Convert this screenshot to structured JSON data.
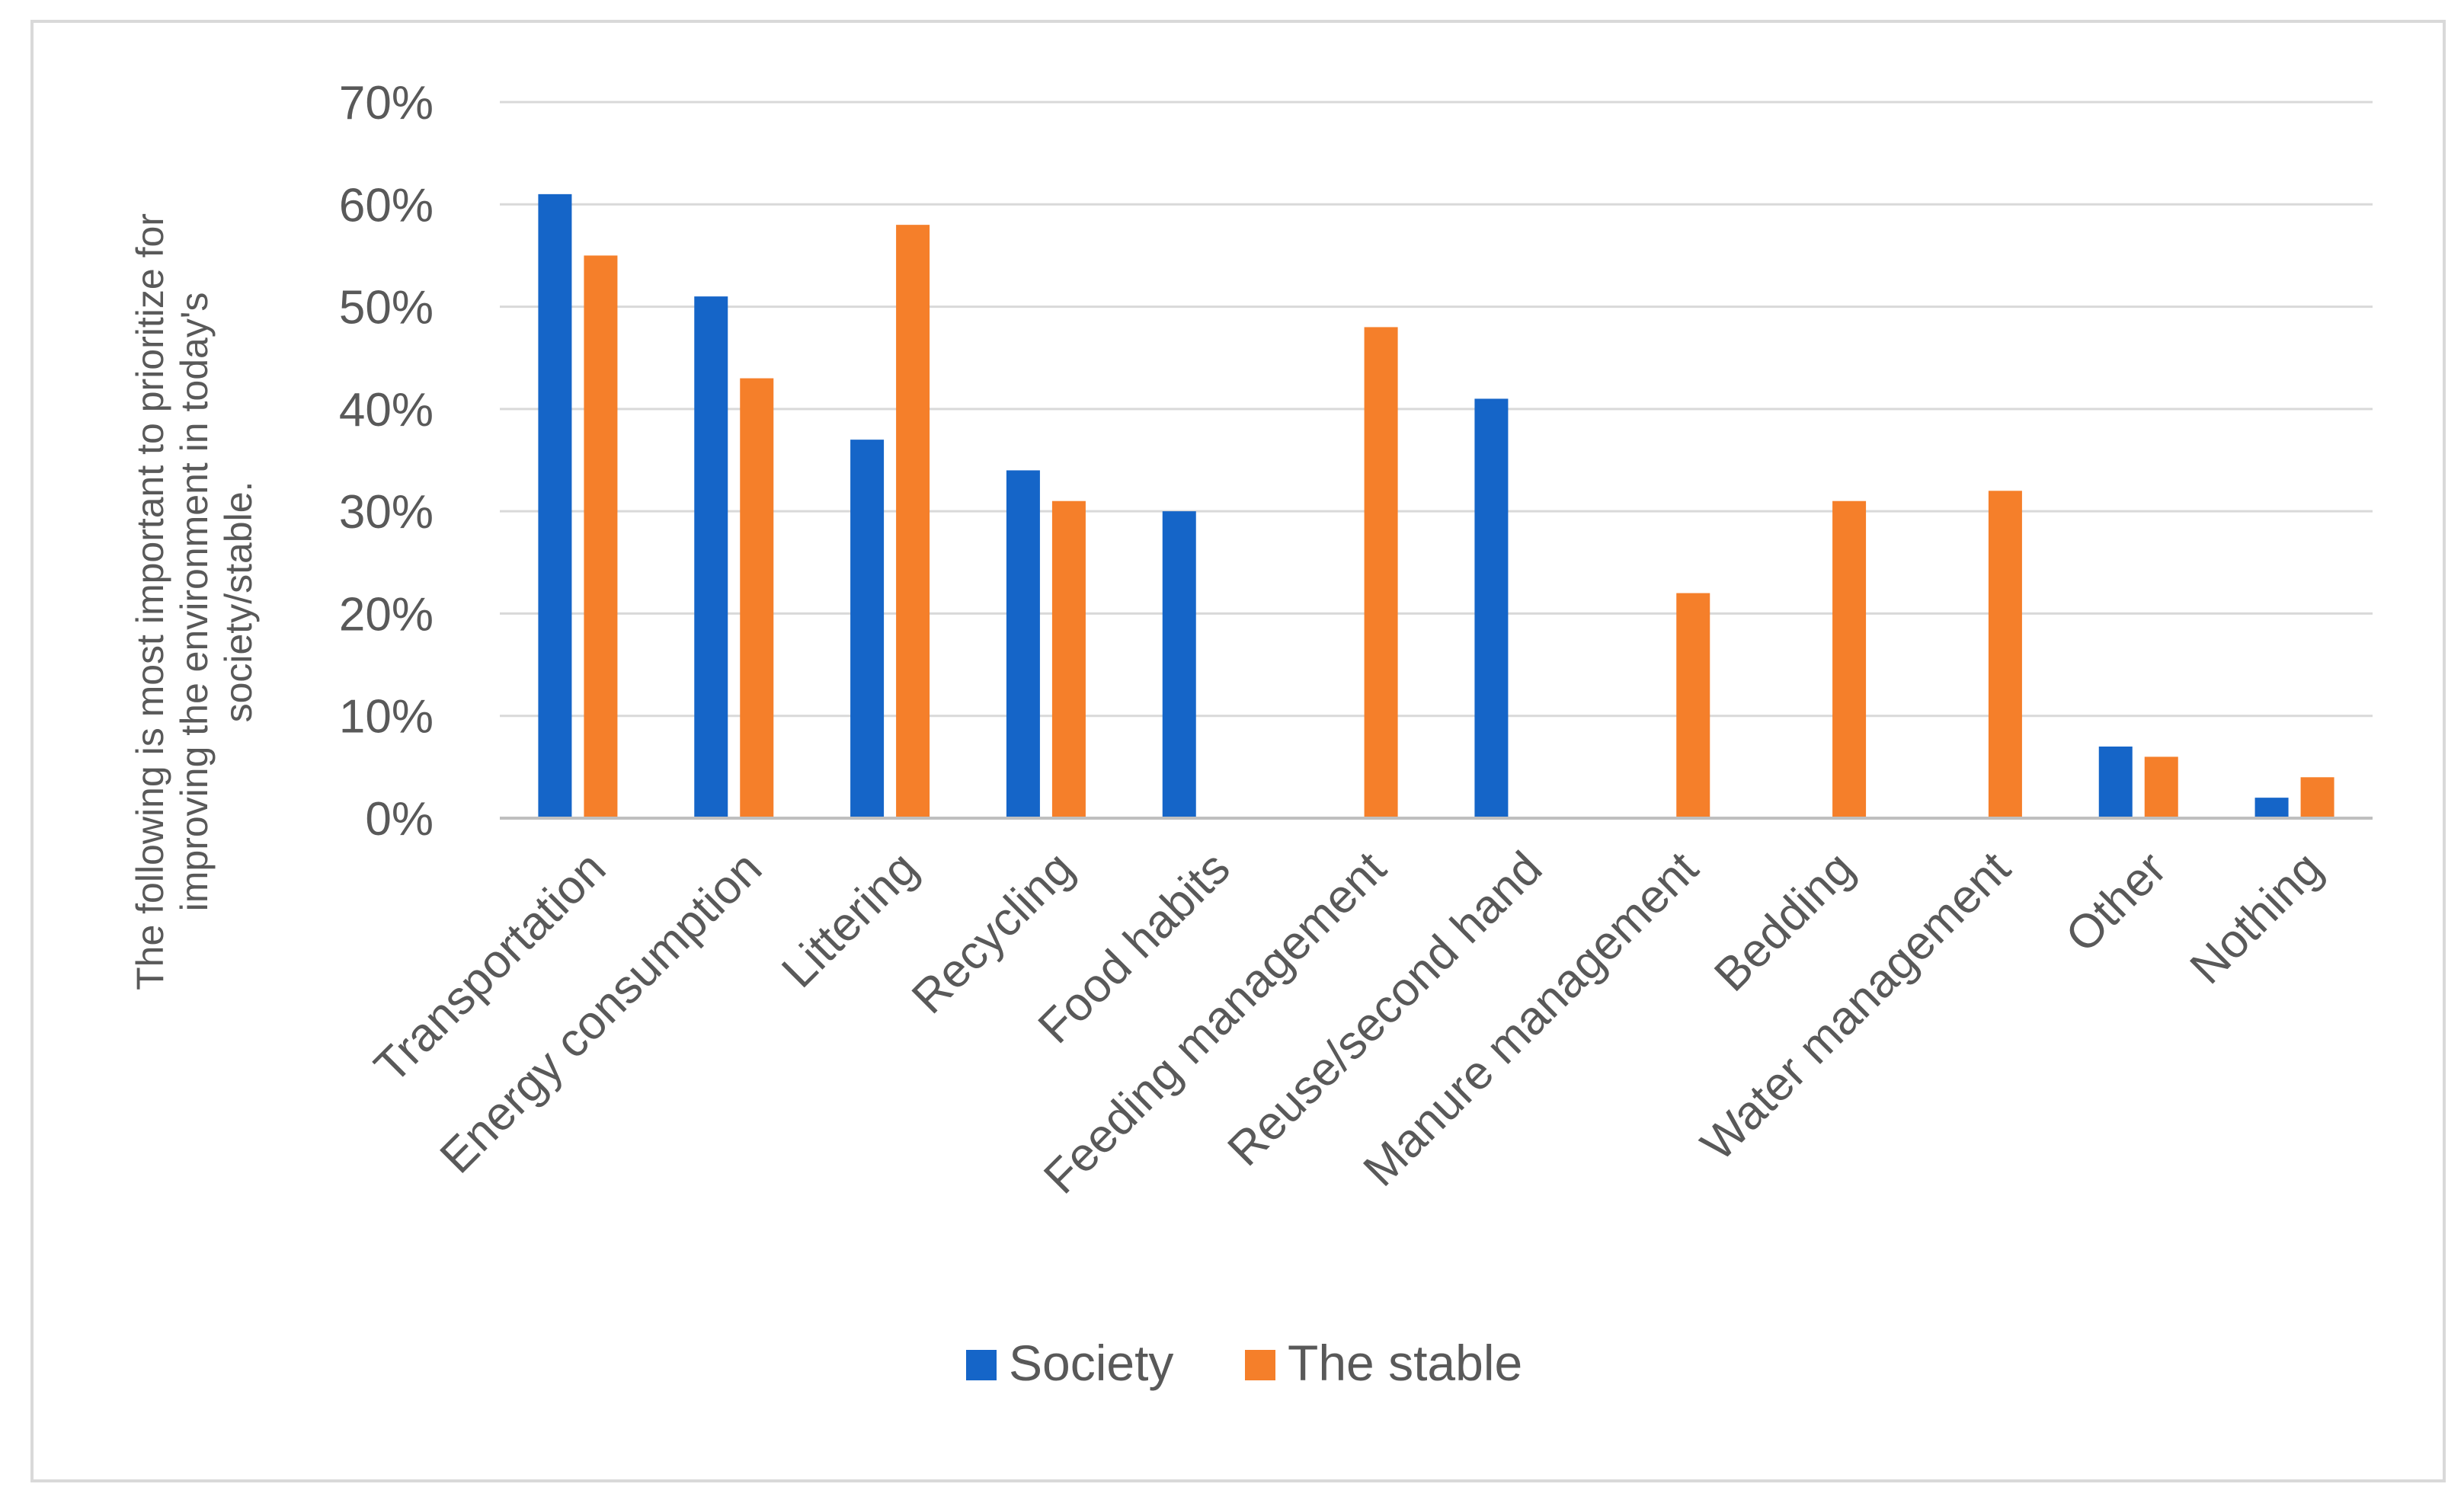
{
  "chart_data": {
    "type": "bar",
    "title": "",
    "xlabel": "",
    "ylabel_lines": [
      "The following is most important to prioritize for",
      "improving the environment in today's",
      "society/stable."
    ],
    "ylim": [
      0,
      70
    ],
    "yticks": [
      0,
      10,
      20,
      30,
      40,
      50,
      60,
      70
    ],
    "ytick_suffix": "%",
    "grid": true,
    "legend_position": "bottom",
    "categories": [
      "Transportation",
      "Energy consumption",
      "Littering",
      "Recycling",
      "Food habits",
      "Feeding management",
      "Reuse/second hand",
      "Manure management",
      "Bedding",
      "Water management",
      "Other",
      "Nothing"
    ],
    "series": [
      {
        "name": "Society",
        "color": "#1565c8",
        "values": [
          61,
          51,
          37,
          34,
          30,
          0,
          41,
          0,
          0,
          0,
          7,
          2
        ]
      },
      {
        "name": "The stable",
        "color": "#f57f2a",
        "values": [
          55,
          43,
          58,
          31,
          0,
          48,
          0,
          22,
          31,
          32,
          6,
          4
        ]
      }
    ]
  }
}
